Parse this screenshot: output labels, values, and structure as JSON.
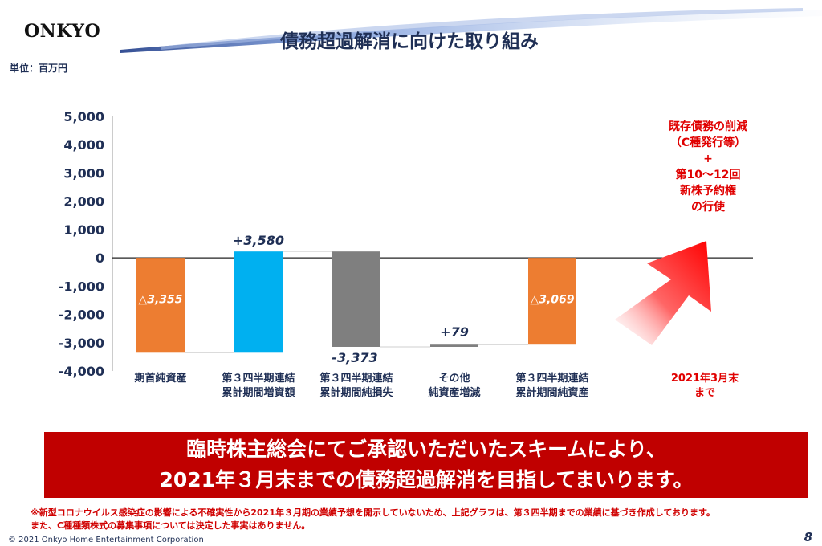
{
  "header": {
    "logo": "ONKYO",
    "title": "債務超過解消に向けた取り組み",
    "unit": "単位：百万円"
  },
  "colors": {
    "orange": "#ed7d31",
    "blue": "#00b0f0",
    "gray": "#7f7f7f",
    "red": "#ff0000",
    "banner": "#c00000",
    "axis_text": "#1f2f55"
  },
  "chart_data": {
    "type": "bar",
    "subtype": "waterfall",
    "categories": [
      [
        "期首純資産"
      ],
      [
        "第３四半期連結",
        "累計期間増資額"
      ],
      [
        "第３四半期連結",
        "累計期間純損失"
      ],
      [
        "その他",
        "純資産増減"
      ],
      [
        "第３四半期連結",
        "累計期間純資産"
      ],
      [
        "2021年3月末",
        "まで"
      ]
    ],
    "bars": [
      {
        "start": 0,
        "end": -3355,
        "label": "△3,355",
        "color": "orange"
      },
      {
        "start": -3355,
        "end": 225,
        "label": "+3,580",
        "color": "blue"
      },
      {
        "start": 225,
        "end": -3148,
        "label": "-3,373",
        "color": "gray"
      },
      {
        "start": -3148,
        "end": -3069,
        "label": "+79",
        "color": "gray"
      },
      {
        "start": 0,
        "end": -3069,
        "label": "△3,069",
        "color": "orange"
      }
    ],
    "yticks": [
      5000,
      4000,
      3000,
      2000,
      1000,
      0,
      -1000,
      -2000,
      -3000,
      -4000
    ],
    "ytick_labels": [
      "5,000",
      "4,000",
      "3,000",
      "2,000",
      "1,000",
      "0",
      "-1,000",
      "-2,000",
      "-3,000",
      "-4,000"
    ],
    "ylim": [
      -4000,
      5000
    ],
    "annotation": [
      "既存債務の削減",
      "（C種発行等）",
      "+",
      "第10～12回",
      "新株予約権",
      "の行使"
    ]
  },
  "banner": {
    "line1": "臨時株主総会にてご承認いただいたスキームにより、",
    "line2": "2021年３月末までの債務超過解消を目指してまいります。"
  },
  "footnote": {
    "line1": "※新型コロナウイルス感染症の影響による不確実性から2021年３月期の業績予想を開示していないため、上記グラフは、第３四半期までの業績に基づき作成しております。",
    "line2": "また、C種種類株式の募集事項については決定した事実はありません。"
  },
  "footer": {
    "copyright": "© 2021  Onkyo Home Entertainment Corporation",
    "page": "8"
  }
}
